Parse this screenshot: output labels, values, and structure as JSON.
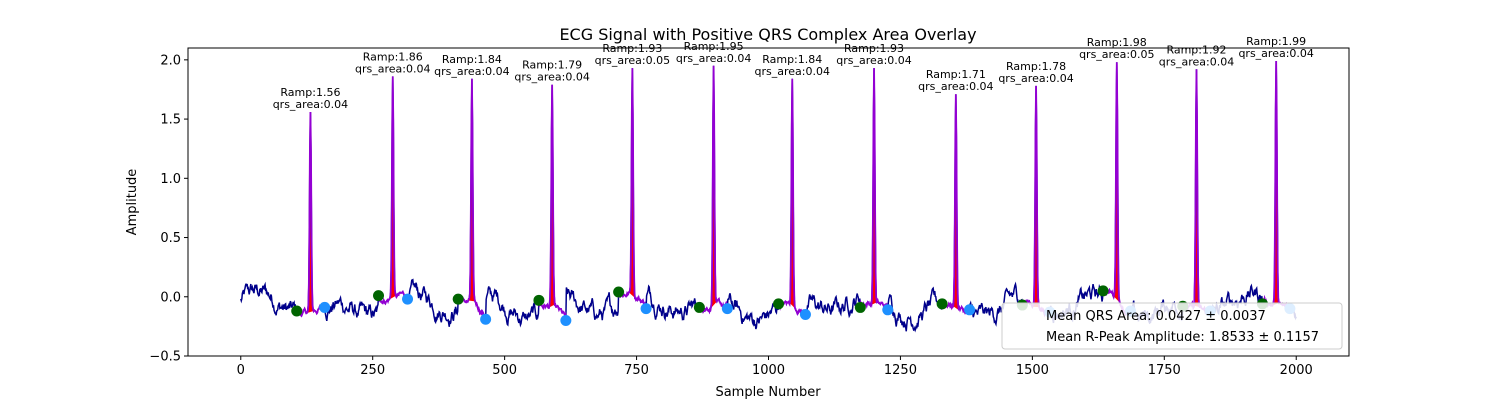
{
  "chart_data": {
    "type": "line",
    "title": "ECG Signal with Positive QRS Complex Area Overlay",
    "xlabel": "Sample Number",
    "ylabel": "Amplitude",
    "xlim": [
      -100,
      2100
    ],
    "ylim": [
      -0.5,
      2.1
    ],
    "xticks": [
      0,
      250,
      500,
      750,
      1000,
      1250,
      1500,
      1750,
      2000
    ],
    "yticks": [
      -0.5,
      0.0,
      0.5,
      1.0,
      1.5,
      2.0
    ],
    "xtick_labels": [
      "0",
      "250",
      "500",
      "750",
      "1000",
      "1250",
      "1500",
      "1750",
      "2000"
    ],
    "ytick_labels": [
      "−0.5",
      "0.0",
      "0.5",
      "1.0",
      "1.5",
      "2.0"
    ],
    "grid": false,
    "colors": {
      "signal": "#00008b",
      "qrs_segment": "#9400d3",
      "qrs_area_fill": "#ff0000",
      "onset_marker": "#006400",
      "offset_marker": "#1e90ff"
    },
    "beats": [
      {
        "r_peak": 132,
        "r_amp": 1.56,
        "qrs_area": 0.04,
        "label_ramp": "Ramp:1.56",
        "label_area": "qrs_area:0.04",
        "onset_x": 106,
        "onset_y": -0.12,
        "offset_x": 159,
        "offset_y": -0.09
      },
      {
        "r_peak": 288,
        "r_amp": 1.86,
        "qrs_area": 0.04,
        "label_ramp": "Ramp:1.86",
        "label_area": "qrs_area:0.04",
        "onset_x": 261,
        "onset_y": 0.01,
        "offset_x": 316,
        "offset_y": -0.02
      },
      {
        "r_peak": 438,
        "r_amp": 1.84,
        "qrs_area": 0.04,
        "label_ramp": "Ramp:1.84",
        "label_area": "qrs_area:0.04",
        "onset_x": 412,
        "onset_y": -0.02,
        "offset_x": 464,
        "offset_y": -0.19
      },
      {
        "r_peak": 590,
        "r_amp": 1.79,
        "qrs_area": 0.04,
        "label_ramp": "Ramp:1.79",
        "label_area": "qrs_area:0.04",
        "onset_x": 565,
        "onset_y": -0.03,
        "offset_x": 616,
        "offset_y": -0.2
      },
      {
        "r_peak": 742,
        "r_amp": 1.93,
        "qrs_area": 0.05,
        "label_ramp": "Ramp:1.93",
        "label_area": "qrs_area:0.05",
        "onset_x": 716,
        "onset_y": 0.04,
        "offset_x": 768,
        "offset_y": -0.1
      },
      {
        "r_peak": 896,
        "r_amp": 1.95,
        "qrs_area": 0.04,
        "label_ramp": "Ramp:1.95",
        "label_area": "qrs_area:0.04",
        "onset_x": 869,
        "onset_y": -0.09,
        "offset_x": 922,
        "offset_y": -0.1
      },
      {
        "r_peak": 1045,
        "r_amp": 1.84,
        "qrs_area": 0.04,
        "label_ramp": "Ramp:1.84",
        "label_area": "qrs_area:0.04",
        "onset_x": 1019,
        "onset_y": -0.06,
        "offset_x": 1070,
        "offset_y": -0.15
      },
      {
        "r_peak": 1200,
        "r_amp": 1.93,
        "qrs_area": 0.04,
        "label_ramp": "Ramp:1.93",
        "label_area": "qrs_area:0.04",
        "onset_x": 1174,
        "onset_y": -0.09,
        "offset_x": 1226,
        "offset_y": -0.11
      },
      {
        "r_peak": 1355,
        "r_amp": 1.71,
        "qrs_area": 0.04,
        "label_ramp": "Ramp:1.71",
        "label_area": "qrs_area:0.04",
        "onset_x": 1329,
        "onset_y": -0.06,
        "offset_x": 1381,
        "offset_y": -0.11
      },
      {
        "r_peak": 1507,
        "r_amp": 1.78,
        "qrs_area": 0.04,
        "label_ramp": "Ramp:1.78",
        "label_area": "qrs_area:0.04",
        "onset_x": 1481,
        "onset_y": -0.07,
        "offset_x": 1533,
        "offset_y": -0.13
      },
      {
        "r_peak": 1660,
        "r_amp": 1.98,
        "qrs_area": 0.05,
        "label_ramp": "Ramp:1.98",
        "label_area": "qrs_area:0.05",
        "onset_x": 1634,
        "onset_y": 0.05,
        "offset_x": 1686,
        "offset_y": -0.12
      },
      {
        "r_peak": 1811,
        "r_amp": 1.92,
        "qrs_area": 0.04,
        "label_ramp": "Ramp:1.92",
        "label_area": "qrs_area:0.04",
        "onset_x": 1785,
        "onset_y": -0.08,
        "offset_x": 1837,
        "offset_y": -0.12
      },
      {
        "r_peak": 1962,
        "r_amp": 1.99,
        "qrs_area": 0.04,
        "label_ramp": "Ramp:1.99",
        "label_area": "qrs_area:0.04",
        "onset_x": 1936,
        "onset_y": -0.06,
        "offset_x": 1988,
        "offset_y": -0.1
      }
    ],
    "legend": {
      "placement": "lower-right",
      "entries": [
        "Mean QRS Area: 0.0427 ± 0.0037",
        "Mean R-Peak Amplitude: 1.8533 ± 0.1157"
      ]
    }
  }
}
